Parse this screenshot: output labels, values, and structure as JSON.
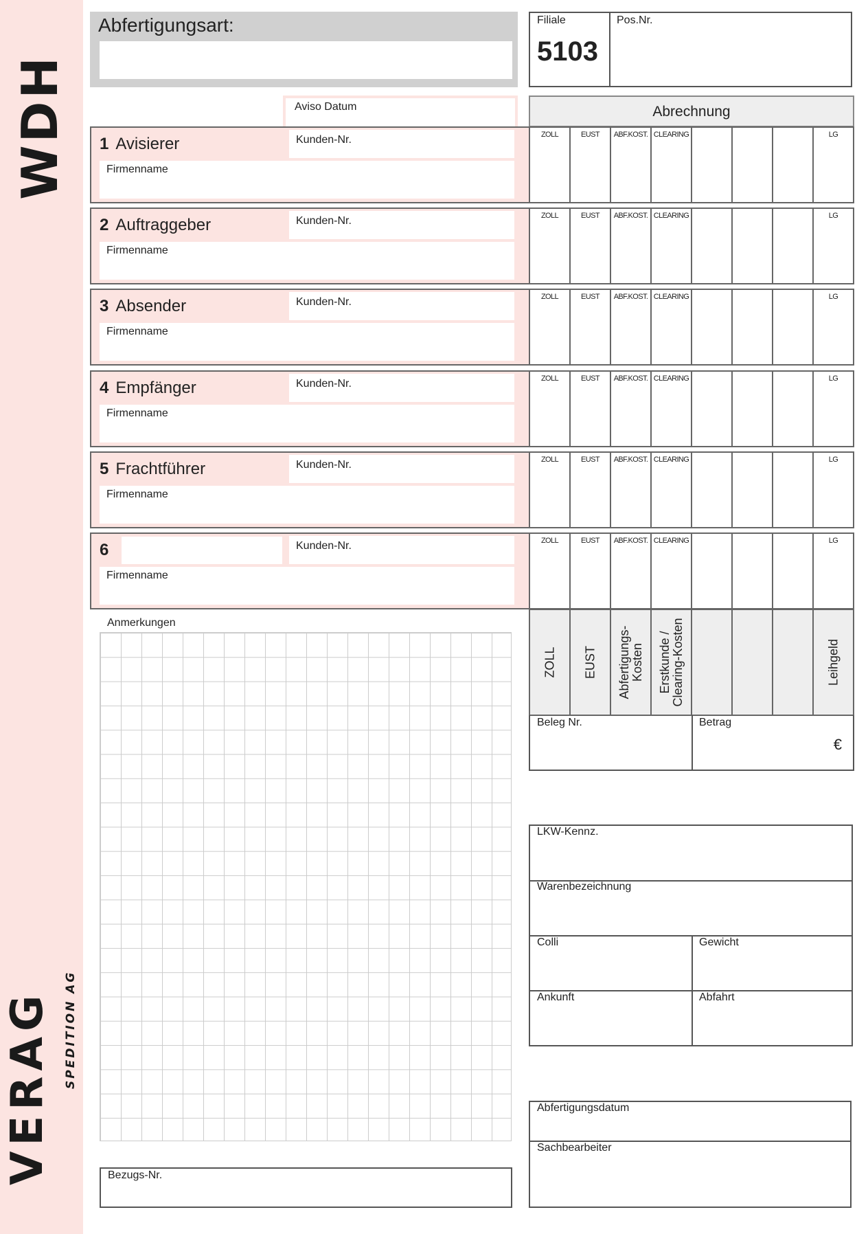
{
  "brand": {
    "top": "WDH",
    "logo": "VERAG",
    "logo_sub": "SPEDITION AG",
    "strip_color": "#fce4e1"
  },
  "header": {
    "abfertigungsart": "Abfertigungsart:",
    "filiale_label": "Filiale",
    "filiale_value": "5103",
    "pos_label": "Pos.Nr.",
    "aviso_datum": "Aviso Datum",
    "abrechnung": "Abrechnung"
  },
  "sections": [
    {
      "num": "1",
      "title": "Avisierer",
      "kunden": "Kunden-Nr.",
      "firma": "Firmenname"
    },
    {
      "num": "2",
      "title": "Auftraggeber",
      "kunden": "Kunden-Nr.",
      "firma": "Firmenname"
    },
    {
      "num": "3",
      "title": "Absender",
      "kunden": "Kunden-Nr.",
      "firma": "Firmenname"
    },
    {
      "num": "4",
      "title": "Empfänger",
      "kunden": "Kunden-Nr.",
      "firma": "Firmenname"
    },
    {
      "num": "5",
      "title": "Frachtführer",
      "kunden": "Kunden-Nr.",
      "firma": "Firmenname"
    },
    {
      "num": "6",
      "title": "",
      "kunden": "Kunden-Nr.",
      "firma": "Firmenname"
    }
  ],
  "columns": [
    "ZOLL",
    "EUST",
    "ABF.KOST.",
    "CLEARING",
    "",
    "",
    "",
    "LG"
  ],
  "column_headers": [
    "ZOLL",
    "EUST",
    "Abfertigungs-\nKosten",
    "Erstkunde /\nClearing-Kosten",
    "",
    "",
    "",
    "Leihgeld"
  ],
  "beleg": "Beleg Nr.",
  "betrag": "Betrag",
  "currency": "€",
  "anmerkungen": "Anmerkungen",
  "bezugs": "Bezugs-Nr.",
  "transport": {
    "lkw": "LKW-Kennz.",
    "waren": "Warenbezeichnung",
    "colli": "Colli",
    "gewicht": "Gewicht",
    "ankunft": "Ankunft",
    "abfahrt": "Abfahrt"
  },
  "footer": {
    "datum": "Abfertigungsdatum",
    "sachbearbeiter": "Sachbearbeiter"
  }
}
